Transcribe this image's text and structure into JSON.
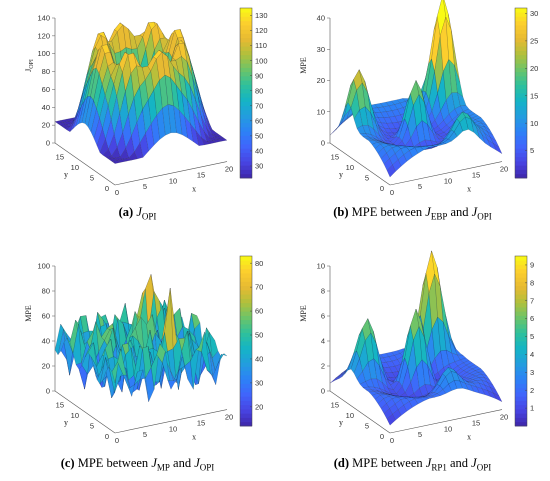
{
  "colormap": [
    "#3e26a8",
    "#4743e1",
    "#4163fb",
    "#2d81f7",
    "#239cdf",
    "#14b4c6",
    "#2ec09c",
    "#6bc46a",
    "#b0c03c",
    "#e7ba32",
    "#fcce2e",
    "#f9fb15"
  ],
  "chart_data": [
    {
      "id": "a",
      "type": "surface",
      "caption_letter": "(a)",
      "caption_text_before": "",
      "caption_sym1": "J",
      "caption_sub1": "OPI",
      "caption_mid": "",
      "caption_sym2": "",
      "caption_sub2": "",
      "zlabel": "J",
      "zlabel_sub": "OPI",
      "xlabel": "x",
      "ylabel": "y",
      "x_ticks": [
        "0",
        "5",
        "10",
        "15",
        "20"
      ],
      "y_ticks": [
        "0",
        "5",
        "10",
        "15"
      ],
      "z_ticks": [
        "0",
        "20",
        "40",
        "60",
        "80",
        "100",
        "120",
        "140"
      ],
      "zlim": [
        0,
        140
      ],
      "colorbar_ticks": [
        "30",
        "40",
        "50",
        "60",
        "70",
        "80",
        "90",
        "100",
        "110",
        "120",
        "130"
      ],
      "clim": [
        22,
        135
      ],
      "grid": {
        "nx": 21,
        "ny": 21
      },
      "shape": "ring",
      "params": {
        "base": 32,
        "peak": 122,
        "ringRadius": 6.5,
        "ringWidth": 2.8,
        "centerDip": 68,
        "spikes": 8
      }
    },
    {
      "id": "b",
      "type": "surface",
      "caption_letter": "(b)",
      "caption_text_before": "MPE between",
      "caption_sym1": "J",
      "caption_sub1": "EBP",
      "caption_mid": "and",
      "caption_sym2": "J",
      "caption_sub2": "OPI",
      "zlabel": "MPE",
      "zlabel_sub": "",
      "xlabel": "x",
      "ylabel": "y",
      "x_ticks": [
        "0",
        "5",
        "10",
        "15",
        "20"
      ],
      "y_ticks": [
        "0",
        "5",
        "10",
        "15"
      ],
      "z_ticks": [
        "0",
        "10",
        "20",
        "30",
        "40"
      ],
      "zlim": [
        0,
        40
      ],
      "colorbar_ticks": [
        "5",
        "10",
        "15",
        "20",
        "25",
        "30"
      ],
      "clim": [
        0,
        31
      ],
      "grid": {
        "nx": 21,
        "ny": 21
      },
      "shape": "bowl-peaks",
      "params": {
        "base": 1,
        "rim": 14,
        "peaks": [
          [
            10,
            10,
            22
          ],
          [
            18,
            16,
            34
          ],
          [
            2,
            14,
            18
          ],
          [
            14,
            2,
            8
          ]
        ]
      }
    },
    {
      "id": "c",
      "type": "surface",
      "caption_letter": "(c)",
      "caption_text_before": "MPE between",
      "caption_sym1": "J",
      "caption_sub1": "MP",
      "caption_mid": "and",
      "caption_sym2": "J",
      "caption_sub2": "OPI",
      "zlabel": "MPE",
      "zlabel_sub": "",
      "xlabel": "x",
      "ylabel": "y",
      "x_ticks": [
        "0",
        "5",
        "10",
        "15",
        "20"
      ],
      "y_ticks": [
        "0",
        "5",
        "10",
        "15"
      ],
      "z_ticks": [
        "0",
        "20",
        "40",
        "60",
        "80",
        "100"
      ],
      "zlim": [
        0,
        100
      ],
      "colorbar_ticks": [
        "20",
        "30",
        "40",
        "50",
        "60",
        "70",
        "80"
      ],
      "clim": [
        12,
        83
      ],
      "grid": {
        "nx": 21,
        "ny": 21
      },
      "shape": "noisy",
      "params": {
        "base": 40,
        "amp": 38,
        "spikes": [
          [
            10,
            10,
            90
          ],
          [
            15,
            16,
            85
          ],
          [
            5,
            12,
            70
          ],
          [
            12,
            4,
            80
          ]
        ]
      }
    },
    {
      "id": "d",
      "type": "surface",
      "caption_letter": "(d)",
      "caption_text_before": "MPE between",
      "caption_sym1": "J",
      "caption_sub1": "RP1",
      "caption_mid": "and",
      "caption_sym2": "J",
      "caption_sub2": "OPI",
      "zlabel": "MPE",
      "zlabel_sub": "",
      "xlabel": "x",
      "ylabel": "y",
      "x_ticks": [
        "0",
        "5",
        "10",
        "15",
        "20"
      ],
      "y_ticks": [
        "0",
        "5",
        "10",
        "15"
      ],
      "z_ticks": [
        "0",
        "2",
        "4",
        "6",
        "8",
        "10"
      ],
      "zlim": [
        0,
        10
      ],
      "colorbar_ticks": [
        "1",
        "2",
        "3",
        "4",
        "5",
        "6",
        "7",
        "8",
        "9"
      ],
      "clim": [
        0,
        9.5
      ],
      "grid": {
        "nx": 21,
        "ny": 21
      },
      "shape": "bowl-peaks",
      "params": {
        "base": 0.3,
        "rim": 3,
        "peaks": [
          [
            10,
            10,
            7
          ],
          [
            16,
            16,
            8.5
          ],
          [
            3,
            13,
            5
          ],
          [
            12,
            3,
            2
          ]
        ]
      }
    }
  ]
}
